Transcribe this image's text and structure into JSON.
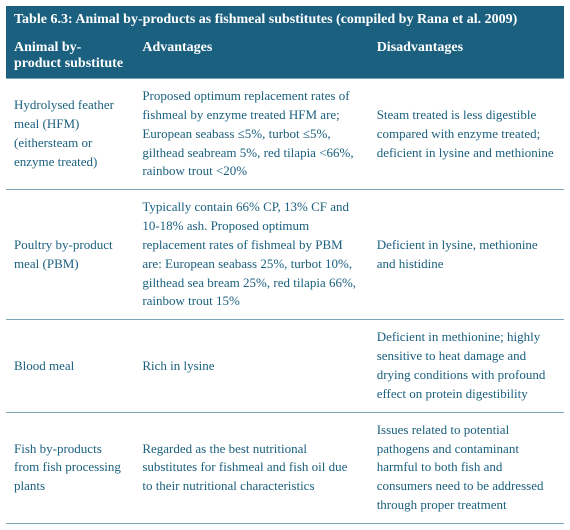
{
  "table": {
    "title": "Table 6.3: Animal by-products as fishmeal substitutes (compiled by Rana et al. 2009)",
    "columns": [
      "Animal by-product substitute",
      "Advantages",
      "Disadvantages"
    ],
    "rows": [
      {
        "substitute": "Hydrolysed feather meal (HFM) (eithersteam or enzyme treated)",
        "advantages": "Proposed optimum replacement rates of fishmeal by enzyme treated HFM are; European seabass ≤5%, turbot ≤5%, gilthead seabream 5%, red tilapia <66%, rainbow trout <20%",
        "disadvantages": "Steam treated is less digestible compared with enzyme treated; deficient in lysine and methionine"
      },
      {
        "substitute": "Poultry by-product meal (PBM)",
        "advantages": "Typically contain 66% CP, 13% CF and 10-18% ash. Proposed optimum replacement rates of fishmeal by PBM are: European seabass 25%, turbot 10%, gilthead sea bream 25%, red tilapia 66%, rainbow trout 15%",
        "disadvantages": "Deficient in lysine, methionine and histidine"
      },
      {
        "substitute": "Blood meal",
        "advantages": "Rich in lysine",
        "disadvantages": "Deficient in methionine; highly sensitive to heat damage and drying conditions with profound effect on protein digestibility"
      },
      {
        "substitute": "Fish by-products from fish processing plants",
        "advantages": "Regarded as the best nutritional substitutes for fishmeal and fish oil due to their nutritional characteristics",
        "disadvantages": "Issues related to potential pathogens and contaminant harmful to both fish and consumers need to be addressed through proper treatment"
      }
    ],
    "colors": {
      "header_bg": "#1b607f",
      "header_text": "#ffffff",
      "body_text": "#1b607f",
      "body_bg": "#ffffff",
      "border": "#7fa6b8"
    },
    "font_family": "Georgia, serif",
    "title_fontsize": 14,
    "header_fontsize": 14,
    "body_fontsize": 13,
    "column_widths_pct": [
      23,
      42,
      35
    ]
  }
}
